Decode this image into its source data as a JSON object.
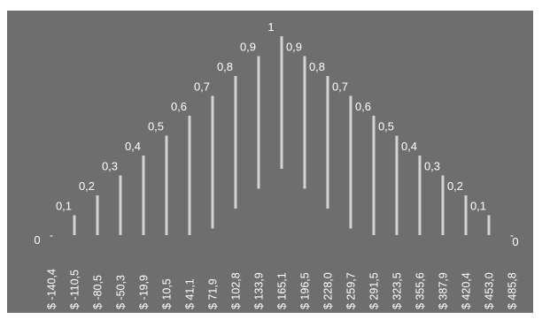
{
  "colors": {
    "background": "#6e6e6e",
    "bar": "#e6e6e6",
    "text": "#ffffff"
  },
  "chart_data": {
    "type": "bar",
    "title": "",
    "xlabel": "",
    "ylabel": "",
    "ylim": [
      0,
      1
    ],
    "grid": false,
    "legend": "none",
    "categories": [
      "$ -140,4",
      "$ -110,5",
      "$ -80,5",
      "$ -50,3",
      "$ -19,9",
      "$ 10,5",
      "$ 41,1",
      "$ 71,9",
      "$ 102,8",
      "$ 133,9",
      "$ 165,1",
      "$ 196,5",
      "$ 228,0",
      "$ 259,7",
      "$ 291,5",
      "$ 323,5",
      "$ 355,6",
      "$ 387,9",
      "$ 420,4",
      "$ 453,0",
      "$ 485,8"
    ],
    "values": [
      0,
      0.1,
      0.2,
      0.3,
      0.4,
      0.5,
      0.6,
      0.7,
      0.8,
      0.9,
      1,
      0.9,
      0.8,
      0.7,
      0.6,
      0.5,
      0.4,
      0.3,
      0.2,
      0.1,
      0
    ],
    "value_labels": [
      "0",
      "0,1",
      "0,2",
      "0,3",
      "0,4",
      "0,5",
      "0,6",
      "0,7",
      "0,8",
      "0,9",
      "1",
      "0,9",
      "0,8",
      "0,7",
      "0,6",
      "0,5",
      "0,4",
      "0,3",
      "0,2",
      "0,1",
      "0"
    ]
  }
}
